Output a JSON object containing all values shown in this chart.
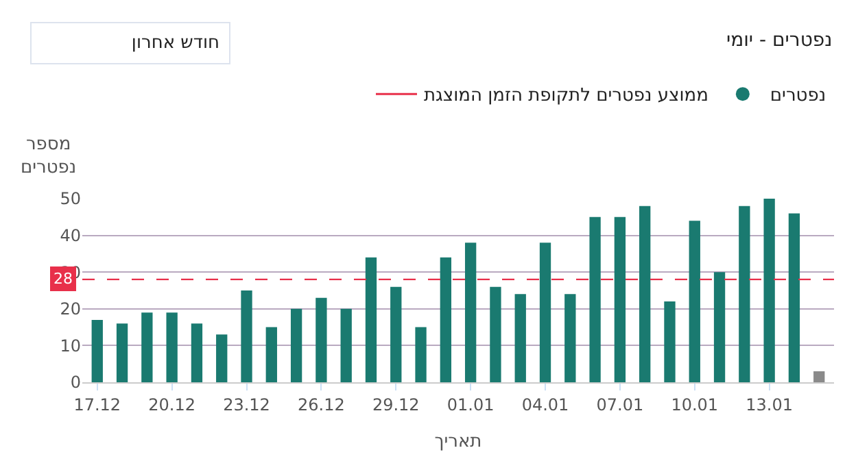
{
  "chart_data": {
    "type": "bar",
    "title": "נפטרים - יומי",
    "xlabel": "תאריך",
    "ylabel": "מספר נפטרים",
    "annotations": [
      "חודש אחרון",
      "28"
    ],
    "categories": [
      "17.12",
      null,
      null,
      "20.12",
      null,
      null,
      "23.12",
      null,
      null,
      "26.12",
      null,
      null,
      "29.12",
      null,
      null,
      "01.01",
      null,
      null,
      "04.01",
      null,
      null,
      "07.01",
      null,
      null,
      "10.01",
      null,
      null,
      "13.01",
      null,
      null
    ],
    "series": [
      {
        "name": "נפטרים",
        "color": "#1a7a70",
        "values": [
          17,
          16,
          19,
          19,
          16,
          13,
          25,
          15,
          20,
          23,
          20,
          34,
          26,
          15,
          34,
          38,
          26,
          24,
          38,
          24,
          45,
          45,
          48,
          22,
          44,
          30,
          48,
          50,
          46,
          3
        ],
        "colors": [
          "#1a7a70",
          "#1a7a70",
          "#1a7a70",
          "#1a7a70",
          "#1a7a70",
          "#1a7a70",
          "#1a7a70",
          "#1a7a70",
          "#1a7a70",
          "#1a7a70",
          "#1a7a70",
          "#1a7a70",
          "#1a7a70",
          "#1a7a70",
          "#1a7a70",
          "#1a7a70",
          "#1a7a70",
          "#1a7a70",
          "#1a7a70",
          "#1a7a70",
          "#1a7a70",
          "#1a7a70",
          "#1a7a70",
          "#1a7a70",
          "#1a7a70",
          "#1a7a70",
          "#1a7a70",
          "#1a7a70",
          "#1a7a70",
          "#8a8a8a"
        ]
      }
    ],
    "ref_lines": [
      {
        "axis": "y",
        "value": 28,
        "label": "ממוצע נפטרים לתקופת הזמן המוצגת",
        "color": "#e8304a",
        "line_style": "dashed"
      }
    ],
    "ylim": [
      0,
      50
    ],
    "yticks": [
      0,
      10,
      20,
      30,
      40,
      50
    ],
    "grid": "y",
    "legend": "top"
  }
}
